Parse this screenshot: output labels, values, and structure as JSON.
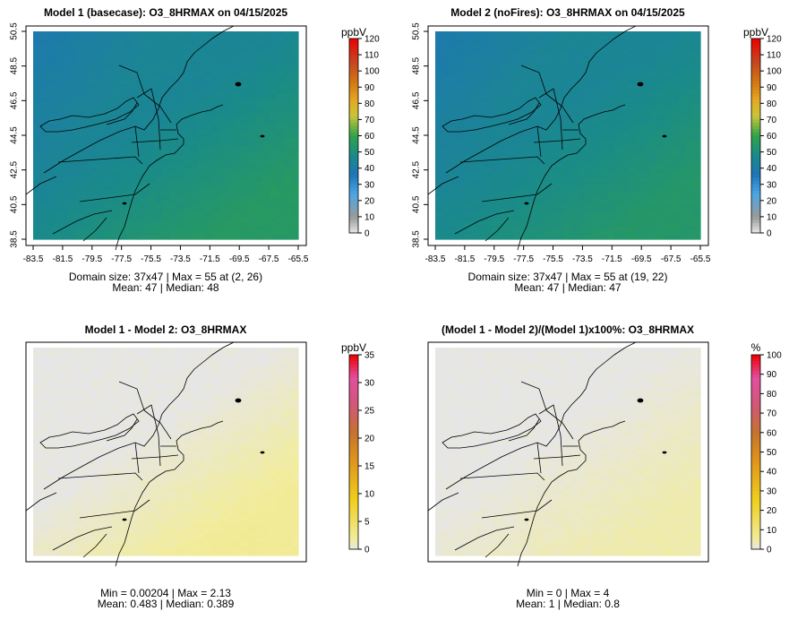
{
  "chart_data": [
    {
      "type": "heatmap",
      "title": "Model 1 (basecase): O3_8HRMAX on 04/15/2025",
      "xticks": [
        "-83.5",
        "-81.5",
        "-79.5",
        "-77.5",
        "-75.5",
        "-73.5",
        "-71.5",
        "-69.5",
        "-67.5",
        "-65.5"
      ],
      "yticks": [
        "38.5",
        "40.5",
        "42.5",
        "44.5",
        "46.5",
        "48.5",
        "50.5"
      ],
      "xlim": [
        -83.5,
        -65.5
      ],
      "ylim": [
        38.5,
        50.5
      ],
      "colorbar": {
        "unit": "ppbV",
        "min": 0,
        "max": 120,
        "ticks": [
          "0",
          "10",
          "20",
          "30",
          "40",
          "50",
          "60",
          "70",
          "80",
          "90",
          "100",
          "110",
          "120"
        ]
      },
      "field": {
        "base": 45,
        "south_east": 55,
        "north_west": 36,
        "grid": [
          37,
          47
        ]
      },
      "stats_line1": "Domain size: 37x47 | Max = 55 at (2, 26)",
      "stats_line2": "Mean: 47 |  Median: 48"
    },
    {
      "type": "heatmap",
      "title": "Model 2 (noFires): O3_8HRMAX on 04/15/2025",
      "xticks": [
        "-83.5",
        "-81.5",
        "-79.5",
        "-77.5",
        "-75.5",
        "-73.5",
        "-71.5",
        "-69.5",
        "-67.5",
        "-65.5"
      ],
      "yticks": [
        "38.5",
        "40.5",
        "42.5",
        "44.5",
        "46.5",
        "48.5",
        "50.5"
      ],
      "xlim": [
        -83.5,
        -65.5
      ],
      "ylim": [
        38.5,
        50.5
      ],
      "colorbar": {
        "unit": "ppbV",
        "min": 0,
        "max": 120,
        "ticks": [
          "0",
          "10",
          "20",
          "30",
          "40",
          "50",
          "60",
          "70",
          "80",
          "90",
          "100",
          "110",
          "120"
        ]
      },
      "field": {
        "base": 45,
        "south_east": 54,
        "north_west": 36,
        "grid": [
          37,
          47
        ]
      },
      "stats_line1": "Domain size: 37x47 | Max = 55 at (19, 22)",
      "stats_line2": "Mean: 47 |  Median: 47"
    },
    {
      "type": "heatmap",
      "title": "Model 1 - Model 2: O3_8HRMAX",
      "colorbar": {
        "unit": "ppbV",
        "min": 0,
        "max": 35,
        "ticks": [
          "0",
          "5",
          "10",
          "15",
          "20",
          "25",
          "30",
          "35"
        ]
      },
      "field": {
        "base": 0.1,
        "south_east": 2.13,
        "north_west": 0.0,
        "grid": [
          37,
          47
        ]
      },
      "stats_line1": "Min = 0.00204 | Max = 2.13",
      "stats_line2": "Mean: 0.483 |  Median: 0.389"
    },
    {
      "type": "heatmap",
      "title": "(Model 1 - Model 2)/(Model 1)x100%: O3_8HRMAX",
      "colorbar": {
        "unit": "%",
        "min": 0,
        "max": 100,
        "ticks": [
          "0",
          "10",
          "20",
          "30",
          "40",
          "50",
          "60",
          "70",
          "80",
          "90",
          "100"
        ]
      },
      "field": {
        "base": 0.2,
        "south_east": 4,
        "north_west": 0,
        "grid": [
          37,
          47
        ]
      },
      "stats_line1": "Min = 0 | Max = 4",
      "stats_line2": "Mean: 1 |  Median: 0.8"
    }
  ]
}
